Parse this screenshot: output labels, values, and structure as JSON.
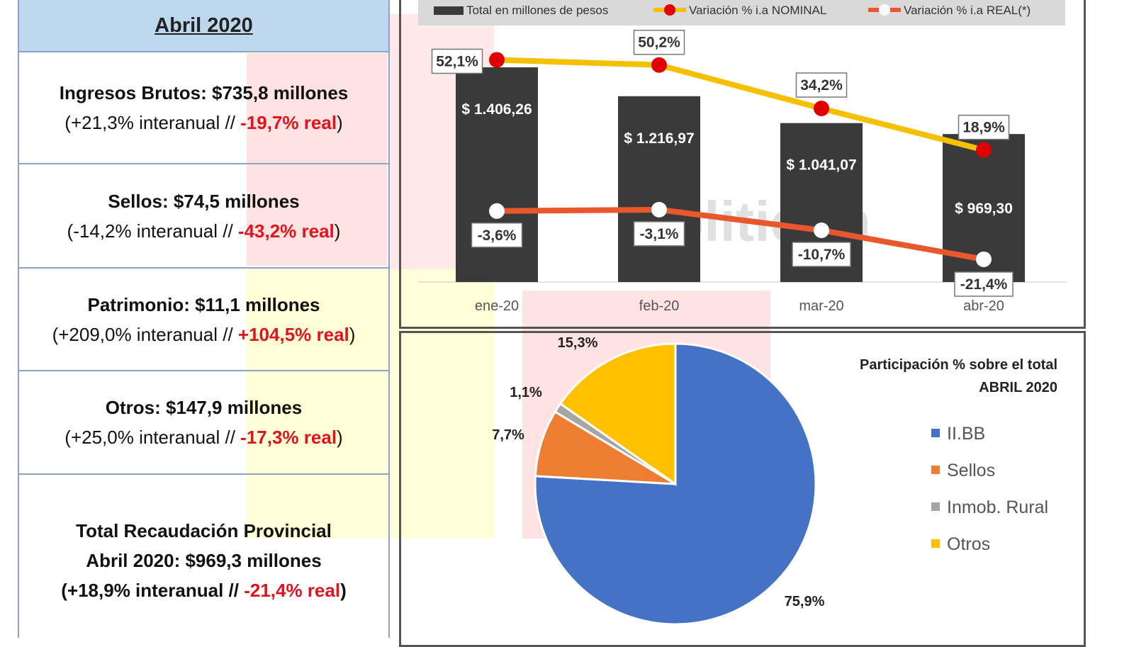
{
  "table": {
    "header": "Abril 2020",
    "rows": [
      {
        "title": "Ingresos  Brutos: $735,8 millones",
        "open": "(+21,3% interanual // ",
        "real": "-19,7% real",
        "close": ")"
      },
      {
        "title": "Sellos: $74,5 millones",
        "open": "(-14,2% interanual // ",
        "real": "-43,2% real",
        "close": ")"
      },
      {
        "title": "Patrimonio:  $11,1 millones",
        "open": "(+209,0% interanual // ",
        "real": "+104,5% real",
        "close": ")"
      },
      {
        "title": "Otros:  $147,9 millones",
        "open": "(+25,0% interanual // ",
        "real": "-17,3% real",
        "close": ")"
      }
    ],
    "total": {
      "line1": "Total  Recaudación  Provincial",
      "line2": "Abril 2020: $969,3 millones",
      "open": "(+18,9% interanual  //  ",
      "real": "-21,4% real",
      "close": ")"
    }
  },
  "watermark": "Politicon",
  "chart_data": [
    {
      "type": "bar",
      "categories": [
        "ene-20",
        "feb-20",
        "mar-20",
        "abr-20"
      ],
      "series": [
        {
          "name": "Total en millones de pesos",
          "kind": "bar",
          "values": [
            1406.26,
            1216.97,
            1041.07,
            969.3
          ],
          "labels": [
            "$ 1.406,26",
            "$ 1.216,97",
            "$ 1.041,07",
            "$ 969,30"
          ],
          "color": "#3a3a3a"
        },
        {
          "name": "Variación % i.a NOMINAL",
          "kind": "line",
          "values": [
            52.1,
            50.2,
            34.2,
            18.9
          ],
          "labels": [
            "52,1%",
            "50,2%",
            "34,2%",
            "18,9%"
          ],
          "color": "#f5c000",
          "marker": "#e00000"
        },
        {
          "name": "Variación % i.a REAL(*)",
          "kind": "line",
          "values": [
            -3.6,
            -3.1,
            -10.7,
            -21.4
          ],
          "labels": [
            "-3,6%",
            "-3,1%",
            "-10,7%",
            "-21,4%"
          ],
          "color": "#e8582c",
          "marker": "#ffffff"
        }
      ],
      "legend": [
        "Total en millones de pesos",
        "Variación % i.a NOMINAL",
        "Variación % i.a REAL(*)"
      ],
      "legend_position": "top",
      "grid": false
    },
    {
      "type": "pie",
      "title": "Participación % sobre el total",
      "subtitle": "ABRIL 2020",
      "categories": [
        "II.BB",
        "Sellos",
        "Inmob. Rural",
        "Otros"
      ],
      "values": [
        75.9,
        7.7,
        1.1,
        15.3
      ],
      "labels": [
        "75,9%",
        "7,7%",
        "1,1%",
        "15,3%"
      ],
      "colors": [
        "#4472c4",
        "#ed7d31",
        "#a5a5a5",
        "#ffc000"
      ],
      "legend_position": "right"
    }
  ]
}
